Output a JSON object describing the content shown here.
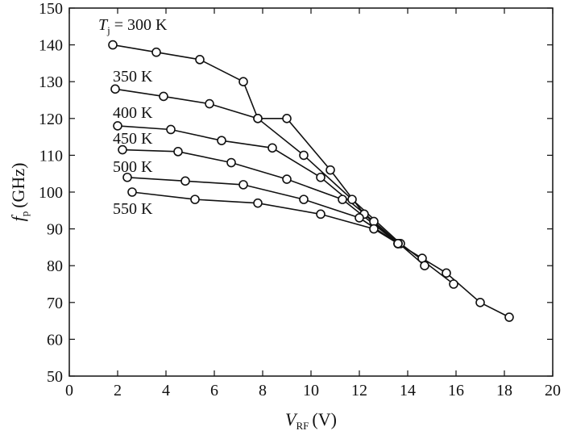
{
  "chart_data": {
    "type": "line",
    "xlabel": {
      "main": "V",
      "sub": "RF",
      "unit": "(V)"
    },
    "ylabel": {
      "main": "f",
      "sub": "p",
      "unit": "(GHz)"
    },
    "xlim": [
      0,
      20
    ],
    "ylim": [
      50,
      150
    ],
    "xticks": [
      0,
      2,
      4,
      6,
      8,
      10,
      12,
      14,
      16,
      18,
      20
    ],
    "yticks": [
      50,
      60,
      70,
      80,
      90,
      100,
      110,
      120,
      130,
      140,
      150
    ],
    "grid": false,
    "marker": "open-circle",
    "series": [
      {
        "name": "300 K",
        "label": {
          "prefix": "T",
          "sub": "j",
          "text": " = 300 K"
        },
        "x": [
          1.8,
          3.6,
          5.4,
          7.2,
          7.8,
          9.0,
          10.8,
          12.2,
          13.6,
          14.6,
          15.6,
          17.0,
          18.2
        ],
        "y": [
          140,
          138,
          136,
          130,
          120,
          120,
          106,
          94,
          86,
          82,
          78,
          70,
          66
        ]
      },
      {
        "name": "350 K",
        "label": {
          "text": "350 K"
        },
        "x": [
          1.9,
          3.9,
          5.8,
          7.8,
          9.7,
          11.7,
          13.7,
          15.9
        ],
        "y": [
          128,
          126,
          124,
          120,
          110,
          98,
          86,
          75
        ]
      },
      {
        "name": "400 K",
        "label": {
          "text": "400 K"
        },
        "x": [
          2.0,
          4.2,
          6.3,
          8.4,
          10.4,
          12.6,
          14.7
        ],
        "y": [
          118,
          117,
          114,
          112,
          104,
          92,
          80
        ]
      },
      {
        "name": "450 K",
        "label": {
          "text": "450 K"
        },
        "x": [
          2.2,
          4.5,
          6.7,
          9.0,
          11.3,
          13.6
        ],
        "y": [
          111.5,
          111,
          108,
          103.5,
          98,
          86
        ]
      },
      {
        "name": "500 K",
        "label": {
          "text": "500 K"
        },
        "x": [
          2.4,
          4.8,
          7.2,
          9.7,
          12.0,
          13.6
        ],
        "y": [
          104,
          103,
          102,
          98,
          93,
          86
        ]
      },
      {
        "name": "550 K",
        "label": {
          "text": "550 K"
        },
        "x": [
          2.6,
          5.2,
          7.8,
          10.4,
          12.6,
          13.6
        ],
        "y": [
          100,
          98,
          97,
          94,
          90,
          86
        ]
      }
    ]
  }
}
